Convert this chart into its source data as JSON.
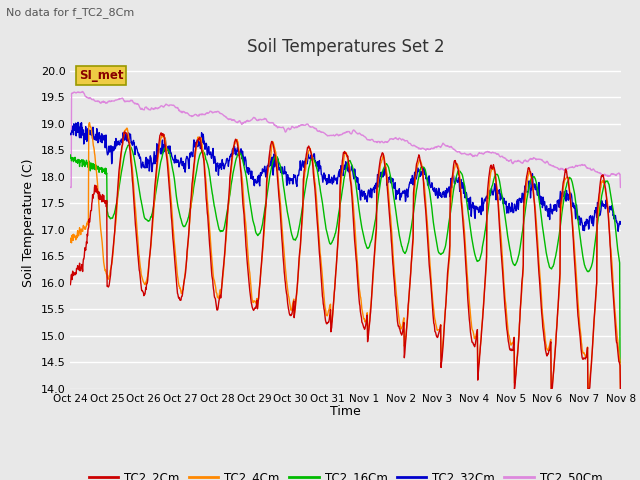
{
  "title": "Soil Temperatures Set 2",
  "subtitle": "No data for f_TC2_8Cm",
  "xlabel": "Time",
  "ylabel": "Soil Temperature (C)",
  "ylim": [
    14.0,
    20.25
  ],
  "yticks": [
    14.0,
    14.5,
    15.0,
    15.5,
    16.0,
    16.5,
    17.0,
    17.5,
    18.0,
    18.5,
    19.0,
    19.5,
    20.0
  ],
  "bg_color": "#e8e8e8",
  "colors": {
    "TC2_2Cm": "#cc0000",
    "TC2_4Cm": "#ff8800",
    "TC2_16Cm": "#00bb00",
    "TC2_32Cm": "#0000cc",
    "TC2_50Cm": "#dd88dd"
  },
  "legend_label": "SI_met",
  "xtick_labels": [
    "Oct 24",
    "Oct 25",
    "Oct 26",
    "Oct 27",
    "Oct 28",
    "Oct 29",
    "Oct 30",
    "Oct 31",
    "Nov 1",
    "Nov 2",
    "Nov 3",
    "Nov 4",
    "Nov 5",
    "Nov 6",
    "Nov 7",
    "Nov 8"
  ],
  "n_days": 15,
  "ppd": 96
}
